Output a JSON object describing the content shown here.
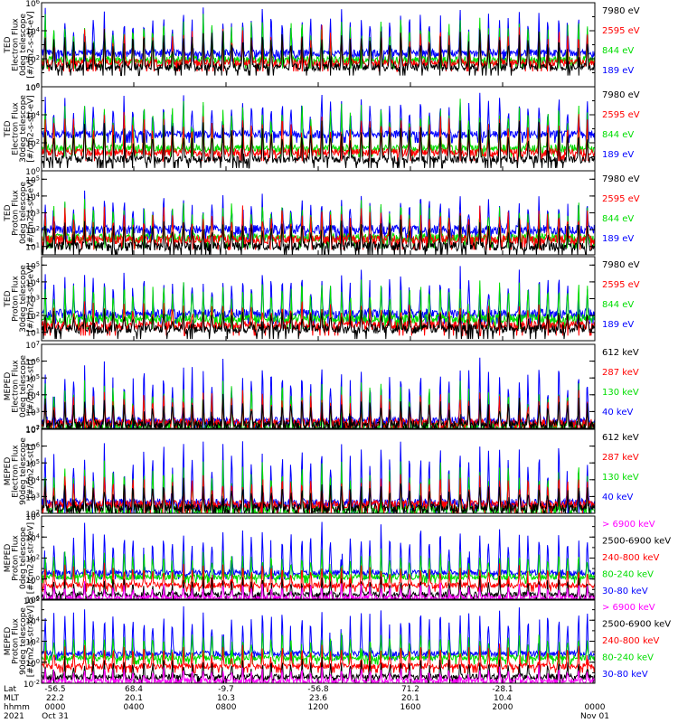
{
  "chart_data": {
    "type": "line",
    "description_note": "",
    "x_labels": {
      "row_names": [
        "Lat",
        "MLT",
        "hhmm",
        "2021"
      ],
      "ticks": [
        {
          "values": [
            "-56.5",
            "22.2",
            "0000",
            "Oct 31"
          ]
        },
        {
          "values": [
            "68.4",
            "20.1",
            "0400",
            ""
          ]
        },
        {
          "values": [
            "-9.7",
            "10.3",
            "0800",
            ""
          ]
        },
        {
          "values": [
            "-56.8",
            "23.6",
            "1200",
            ""
          ]
        },
        {
          "values": [
            "71.2",
            "20.1",
            "1600",
            ""
          ]
        },
        {
          "values": [
            "-28.1",
            "10.4",
            "2000",
            ""
          ]
        },
        {
          "values": [
            "",
            "",
            "0000",
            "Nov 01"
          ]
        }
      ]
    },
    "panels": [
      {
        "ylabel": [
          "TED",
          "Electron Flux",
          "0deg telescope",
          "[#/cm2-s-str-eV]"
        ],
        "ytick_labels": [
          "10^0",
          "10^2",
          "10^4",
          "10^6"
        ],
        "ylim_log10": [
          0,
          6
        ],
        "series": [
          {
            "name": "7980 eV",
            "color": "#000000",
            "base": 1.4,
            "peak": 3.8
          },
          {
            "name": "2595 eV",
            "color": "#ff0000",
            "base": 1.7,
            "peak": 4.0
          },
          {
            "name": "844 eV",
            "color": "#00dd00",
            "base": 1.9,
            "peak": 4.8
          },
          {
            "name": "189 eV",
            "color": "#0000ff",
            "base": 2.4,
            "peak": 5.2
          }
        ]
      },
      {
        "ylabel": [
          "TED",
          "Electron Flux",
          "30deg telescope",
          "[#/cm2-s-str-eV]"
        ],
        "ytick_labels": [
          "10^0",
          "10^2",
          "10^4",
          "10^6"
        ],
        "ylim_log10": [
          0,
          6
        ],
        "series": [
          {
            "name": "7980 eV",
            "color": "#000000",
            "base": 0.8,
            "peak": 3.2
          },
          {
            "name": "2595 eV",
            "color": "#ff0000",
            "base": 1.3,
            "peak": 3.8
          },
          {
            "name": "844 eV",
            "color": "#00dd00",
            "base": 1.6,
            "peak": 4.6
          },
          {
            "name": "189 eV",
            "color": "#0000ff",
            "base": 2.6,
            "peak": 5.0
          }
        ]
      },
      {
        "ylabel": [
          "TED",
          "Proton Flux",
          "0deg telescope",
          "[#/cm2-s-str-eV]"
        ],
        "ytick_labels": [
          "10^1",
          "10^2",
          "10^3",
          "10^4",
          "10^5"
        ],
        "ylim_log10": [
          0.5,
          5.5
        ],
        "series": [
          {
            "name": "7980 eV",
            "color": "#000000",
            "base": 1.0,
            "peak": 2.4
          },
          {
            "name": "2595 eV",
            "color": "#ff0000",
            "base": 1.4,
            "peak": 3.0
          },
          {
            "name": "844 eV",
            "color": "#00dd00",
            "base": 1.5,
            "peak": 3.5
          },
          {
            "name": "189 eV",
            "color": "#0000ff",
            "base": 2.0,
            "peak": 3.8
          }
        ]
      },
      {
        "ylabel": [
          "TED",
          "Proton Flux",
          "30deg telescope",
          "[#/cm2-s-str-eV]"
        ],
        "ytick_labels": [
          "10^1",
          "10^2",
          "10^3",
          "10^4",
          "10^5"
        ],
        "ylim_log10": [
          0.5,
          5.5
        ],
        "series": [
          {
            "name": "7980 eV",
            "color": "#000000",
            "base": 1.2,
            "peak": 2.2
          },
          {
            "name": "2595 eV",
            "color": "#ff0000",
            "base": 1.4,
            "peak": 2.6
          },
          {
            "name": "844 eV",
            "color": "#00dd00",
            "base": 1.8,
            "peak": 3.8
          },
          {
            "name": "189 eV",
            "color": "#0000ff",
            "base": 2.1,
            "peak": 4.4
          }
        ]
      },
      {
        "ylabel": [
          "MEPED",
          "Electron Flux",
          "0deg telescope",
          "[#/cm2-s-str]"
        ],
        "ytick_labels": [
          "10^2",
          "10^3",
          "10^4",
          "10^5",
          "10^6",
          "10^7"
        ],
        "ylim_log10": [
          2,
          7
        ],
        "series": [
          {
            "name": "612 keV",
            "color": "#000000",
            "base": 2.2,
            "peak": 3.6
          },
          {
            "name": "287 keV",
            "color": "#ff0000",
            "base": 2.3,
            "peak": 4.0
          },
          {
            "name": "130 keV",
            "color": "#00dd00",
            "base": 2.1,
            "peak": 4.5
          },
          {
            "name": "40 keV",
            "color": "#0000ff",
            "base": 2.4,
            "peak": 5.6
          }
        ]
      },
      {
        "ylabel": [
          "MEPED",
          "Electron Flux",
          "90deg telescope",
          "[#/cm2-s-str]"
        ],
        "ytick_labels": [
          "10^2",
          "10^3",
          "10^4",
          "10^5",
          "10^6",
          "10^7"
        ],
        "ylim_log10": [
          2,
          7
        ],
        "series": [
          {
            "name": "612 keV",
            "color": "#000000",
            "base": 2.3,
            "peak": 3.7
          },
          {
            "name": "287 keV",
            "color": "#ff0000",
            "base": 2.5,
            "peak": 4.1
          },
          {
            "name": "130 keV",
            "color": "#00dd00",
            "base": 2.2,
            "peak": 4.8
          },
          {
            "name": "40 keV",
            "color": "#0000ff",
            "base": 2.6,
            "peak": 5.8
          }
        ]
      },
      {
        "ylabel": [
          "MEPED",
          "Proton Flux",
          "0deg telescope",
          "[#/cm2-s-str-keV]"
        ],
        "ytick_labels": [
          "10^-2",
          "10^0",
          "10^2",
          "10^4",
          "10^6"
        ],
        "ylim_log10": [
          -2,
          6
        ],
        "series": [
          {
            "name": "> 6900 keV",
            "color": "#ff00ff",
            "base": -1.8,
            "peak": -0.6
          },
          {
            "name": "2500-6900 keV",
            "color": "#000000",
            "base": -1.5,
            "peak": 0.0
          },
          {
            "name": "240-800 keV",
            "color": "#ff0000",
            "base": -0.6,
            "peak": 1.2
          },
          {
            "name": "80-240 keV",
            "color": "#00dd00",
            "base": 0.2,
            "peak": 2.4
          },
          {
            "name": "30-80 keV",
            "color": "#0000ff",
            "base": 0.6,
            "peak": 4.6
          }
        ]
      },
      {
        "ylabel": [
          "MEPED",
          "Proton Flux",
          "90deg telescope",
          "[#/cm2-s-str-keV]"
        ],
        "ytick_labels": [
          "10^-2",
          "10^0",
          "10^2",
          "10^4",
          "10^6"
        ],
        "ylim_log10": [
          -2,
          6
        ],
        "series": [
          {
            "name": "> 6900 keV",
            "color": "#ff00ff",
            "base": -1.8,
            "peak": -0.6
          },
          {
            "name": "2500-6900 keV",
            "color": "#000000",
            "base": -1.4,
            "peak": 0.2
          },
          {
            "name": "240-800 keV",
            "color": "#ff0000",
            "base": -0.4,
            "peak": 1.4
          },
          {
            "name": "80-240 keV",
            "color": "#00dd00",
            "base": 0.4,
            "peak": 2.6
          },
          {
            "name": "30-80 keV",
            "color": "#0000ff",
            "base": 0.8,
            "peak": 4.8
          }
        ]
      }
    ],
    "orbit_passes": 28,
    "grid": false,
    "legend_placement": "right of each panel"
  }
}
